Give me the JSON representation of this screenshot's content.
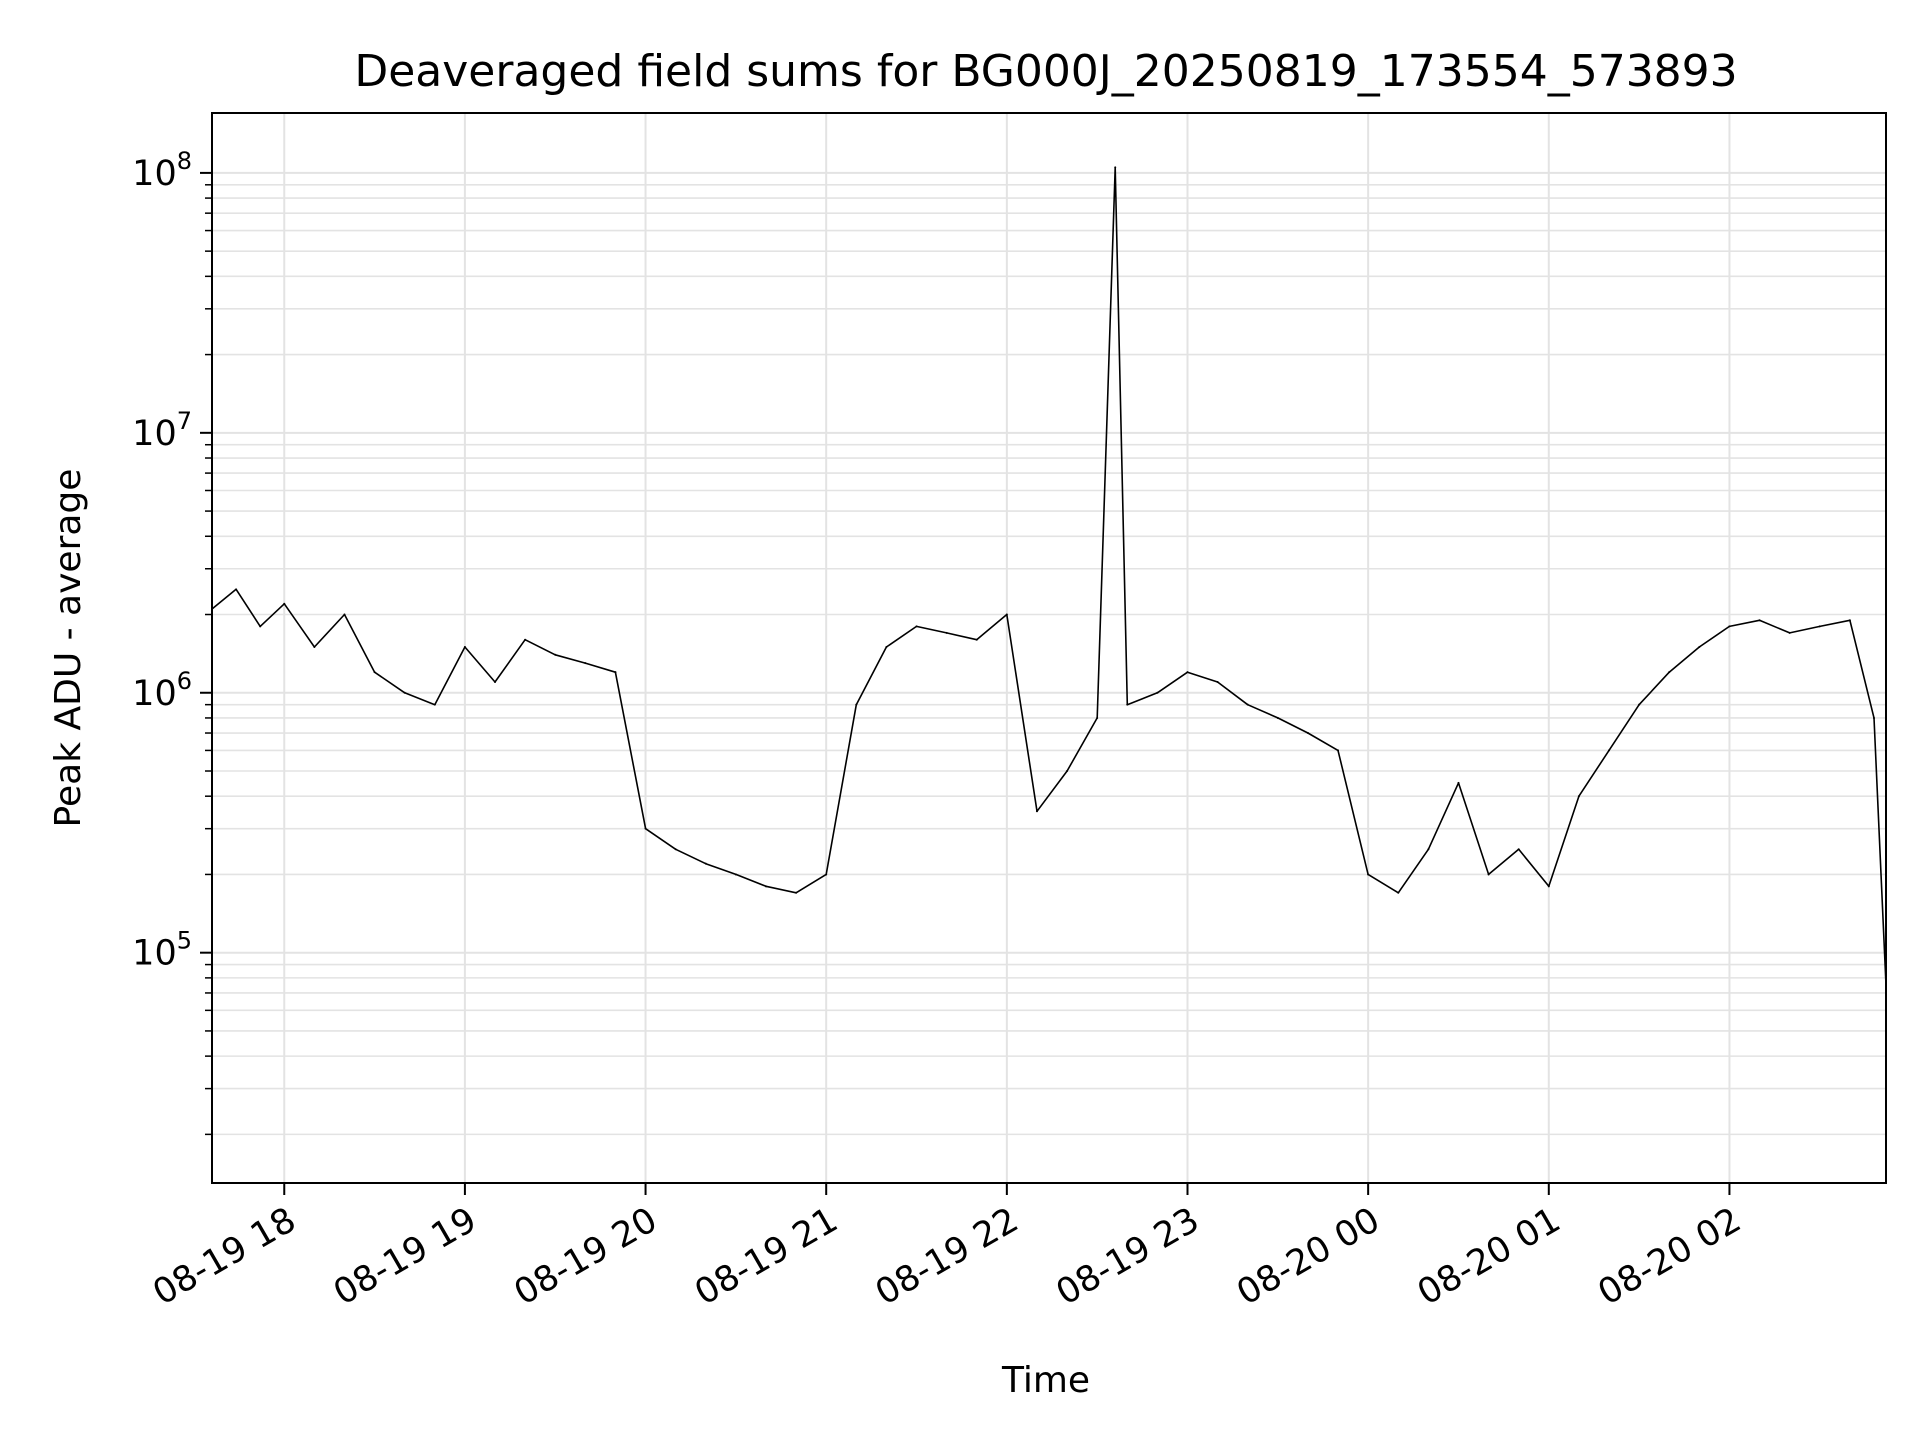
{
  "chart_data": {
    "type": "line",
    "title": "Deaveraged field sums for BG000J_20250819_173554_573893",
    "xlabel": "Time",
    "ylabel": "Peak ADU - average",
    "y_scale": "log",
    "ylim": [
      13000,
      170000000
    ],
    "xlim": [
      "2025-08-19 17:36",
      "2025-08-20 02:52"
    ],
    "grid": true,
    "x_ticks": [
      {
        "t": "2025-08-19 18:00",
        "label": "08-19 18"
      },
      {
        "t": "2025-08-19 19:00",
        "label": "08-19 19"
      },
      {
        "t": "2025-08-19 20:00",
        "label": "08-19 20"
      },
      {
        "t": "2025-08-19 21:00",
        "label": "08-19 21"
      },
      {
        "t": "2025-08-19 22:00",
        "label": "08-19 22"
      },
      {
        "t": "2025-08-19 23:00",
        "label": "08-19 23"
      },
      {
        "t": "2025-08-20 00:00",
        "label": "08-20 00"
      },
      {
        "t": "2025-08-20 01:00",
        "label": "08-20 01"
      },
      {
        "t": "2025-08-20 02:00",
        "label": "08-20 02"
      }
    ],
    "y_ticks": [
      {
        "value": 100000,
        "base": "10",
        "exp": "5"
      },
      {
        "value": 1000000,
        "base": "10",
        "exp": "6"
      },
      {
        "value": 10000000,
        "base": "10",
        "exp": "7"
      },
      {
        "value": 100000000,
        "base": "10",
        "exp": "8"
      }
    ],
    "line_color": "#000000",
    "series": [
      {
        "x": [
          "2025-08-19 17:36",
          "2025-08-19 17:44",
          "2025-08-19 17:52",
          "2025-08-19 18:00",
          "2025-08-19 18:10",
          "2025-08-19 18:20",
          "2025-08-19 18:30",
          "2025-08-19 18:40",
          "2025-08-19 18:50",
          "2025-08-19 19:00",
          "2025-08-19 19:10",
          "2025-08-19 19:20",
          "2025-08-19 19:30",
          "2025-08-19 19:40",
          "2025-08-19 19:50",
          "2025-08-19 20:00",
          "2025-08-19 20:10",
          "2025-08-19 20:20",
          "2025-08-19 20:30",
          "2025-08-19 20:40",
          "2025-08-19 20:50",
          "2025-08-19 21:00",
          "2025-08-19 21:10",
          "2025-08-19 21:20",
          "2025-08-19 21:30",
          "2025-08-19 21:40",
          "2025-08-19 21:50",
          "2025-08-19 22:00",
          "2025-08-19 22:10",
          "2025-08-19 22:20",
          "2025-08-19 22:30",
          "2025-08-19 22:36",
          "2025-08-19 22:40",
          "2025-08-19 22:50",
          "2025-08-19 23:00",
          "2025-08-19 23:10",
          "2025-08-19 23:20",
          "2025-08-19 23:30",
          "2025-08-19 23:40",
          "2025-08-19 23:50",
          "2025-08-20 00:00",
          "2025-08-20 00:10",
          "2025-08-20 00:20",
          "2025-08-20 00:30",
          "2025-08-20 00:40",
          "2025-08-20 00:50",
          "2025-08-20 01:00",
          "2025-08-20 01:10",
          "2025-08-20 01:20",
          "2025-08-20 01:30",
          "2025-08-20 01:40",
          "2025-08-20 01:50",
          "2025-08-20 02:00",
          "2025-08-20 02:10",
          "2025-08-20 02:20",
          "2025-08-20 02:30",
          "2025-08-20 02:40",
          "2025-08-20 02:48",
          "2025-08-20 02:52"
        ],
        "y": [
          2100000,
          2500000,
          1800000,
          2200000,
          1500000,
          2000000,
          1200000,
          1000000,
          900000,
          1500000,
          1100000,
          1600000,
          1400000,
          1300000,
          1200000,
          300000,
          250000,
          220000,
          200000,
          180000,
          170000,
          200000,
          900000,
          1500000,
          1800000,
          1700000,
          1600000,
          2000000,
          350000,
          500000,
          800000,
          105000000,
          900000,
          1000000,
          1200000,
          1100000,
          900000,
          800000,
          700000,
          600000,
          200000,
          170000,
          250000,
          450000,
          200000,
          250000,
          180000,
          400000,
          600000,
          900000,
          1200000,
          1500000,
          1800000,
          1900000,
          1700000,
          1800000,
          1900000,
          800000,
          75000
        ]
      }
    ]
  }
}
